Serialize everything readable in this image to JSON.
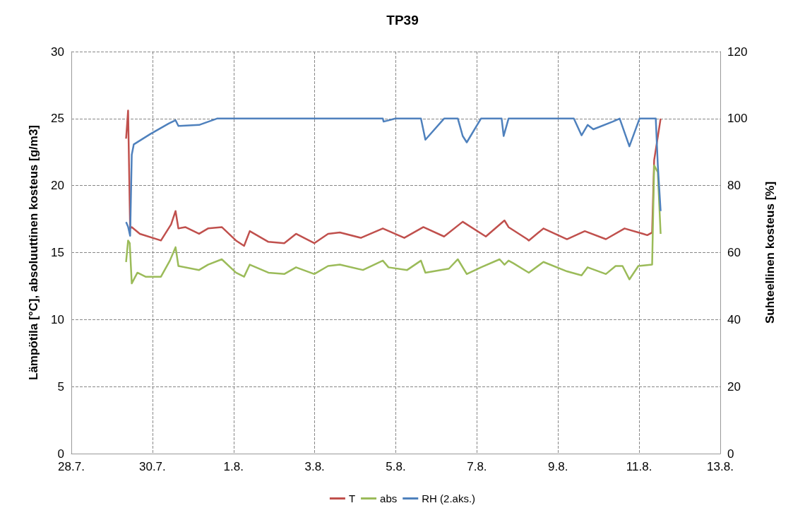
{
  "chart_data": {
    "type": "line",
    "title": "TP39",
    "ylabel": "Lämpötila [°C], absoluuttinen kosteus [g/m3]",
    "y2label": "Suhteellinen kosteus [%]",
    "xlim": [
      "--07-28",
      "--08-13"
    ],
    "xticks": [
      {
        "value": "--07-28",
        "label": "28.7."
      },
      {
        "value": "--07-30",
        "label": "30.7."
      },
      {
        "value": "--08-01",
        "label": "1.8."
      },
      {
        "value": "--08-03",
        "label": "3.8."
      },
      {
        "value": "--08-05",
        "label": "5.8."
      },
      {
        "value": "--08-07",
        "label": "7.8."
      },
      {
        "value": "--08-09",
        "label": "9.8."
      },
      {
        "value": "--08-11",
        "label": "11.8."
      },
      {
        "value": "--08-13",
        "label": "13.8."
      }
    ],
    "ylim": [
      0,
      30
    ],
    "yticks": [
      0,
      5,
      10,
      15,
      20,
      25,
      30
    ],
    "y2lim": [
      0,
      120
    ],
    "y2ticks": [
      0,
      20,
      40,
      60,
      80,
      100,
      120
    ],
    "grid": true,
    "legend": "bottom",
    "marker": "none",
    "line_style": "solid",
    "series": [
      {
        "name": "T",
        "color": "#c0504d",
        "x": [
          "--07-29T08:24",
          "--07-29T09:36",
          "--07-29T10:48",
          "--07-29T11:46",
          "--07-29T16:34",
          "--07-30T05:02",
          "--07-30T11:02",
          "--07-30T13:41",
          "--07-30T15:22",
          "--07-30T19:26",
          "--07-31T03:36",
          "--07-31T08:53",
          "--07-31T17:02",
          "--08-01T01:26",
          "--08-01T06:14",
          "--08-01T09:36",
          "--08-01T20:38",
          "--08-02T06:00",
          "--08-02T12:58",
          "--08-02T23:46",
          "--08-03T07:55",
          "--08-03T14:53",
          "--08-04T03:22",
          "--08-04T16:19",
          "--08-05T05:02",
          "--08-05T16:19",
          "--08-06T04:34",
          "--08-06T15:36",
          "--08-07T05:17",
          "--08-07T16:19",
          "--08-07T18:43",
          "--08-08T05:46",
          "--08-08T06:43",
          "--08-08T15:22",
          "--08-09T05:17",
          "--08-09T15:50",
          "--08-10T04:19",
          "--08-10T15:22",
          "--08-11T02:24",
          "--08-11T04:48",
          "--08-11T07:41",
          "--08-11T08:53",
          "--08-11T12:43"
        ],
        "values": [
          23.5,
          25.6,
          16.8,
          16.9,
          16.4,
          15.9,
          17.1,
          18.1,
          16.8,
          16.9,
          16.4,
          16.8,
          16.9,
          15.9,
          15.5,
          16.6,
          15.8,
          15.7,
          16.4,
          15.7,
          16.4,
          16.5,
          16.1,
          16.8,
          16.1,
          16.9,
          16.2,
          17.3,
          16.2,
          17.4,
          16.9,
          16.0,
          15.9,
          16.8,
          16.0,
          16.6,
          16.0,
          16.8,
          16.4,
          16.3,
          16.5,
          21.9,
          25.0
        ]
      },
      {
        "name": "abs",
        "color": "#9bbb59",
        "x": [
          "--07-29T08:24",
          "--07-29T09:36",
          "--07-29T10:34",
          "--07-29T11:46",
          "--07-29T15:07",
          "--07-29T19:55",
          "--07-30T05:02",
          "--07-30T10:19",
          "--07-30T13:41",
          "--07-30T15:22",
          "--07-31T03:36",
          "--07-31T08:53",
          "--07-31T17:02",
          "--08-01T01:26",
          "--08-01T06:14",
          "--08-01T09:36",
          "--08-01T20:38",
          "--08-02T06:00",
          "--08-02T12:58",
          "--08-02T23:46",
          "--08-03T07:55",
          "--08-03T14:53",
          "--08-04T04:34",
          "--08-04T16:19",
          "--08-04T19:41",
          "--08-05T06:43",
          "--08-05T14:53",
          "--08-05T17:31",
          "--08-06T07:26",
          "--08-06T12:43",
          "--08-06T18:00",
          "--08-07T02:24",
          "--08-07T13:26",
          "--08-07T16:19",
          "--08-07T18:43",
          "--08-07T21:36",
          "--08-08T06:43",
          "--08-08T15:22",
          "--08-09T05:17",
          "--08-09T13:55",
          "--08-09T17:31",
          "--08-10T04:19",
          "--08-10T10:05",
          "--08-10T14:10",
          "--08-10T18:14",
          "--08-10T23:31",
          "--08-11T07:41",
          "--08-11T08:53",
          "--08-11T11:02",
          "--08-11T12:43"
        ],
        "values": [
          14.3,
          15.9,
          15.7,
          12.7,
          13.5,
          13.2,
          13.2,
          14.4,
          15.4,
          14.0,
          13.7,
          14.1,
          14.5,
          13.5,
          13.2,
          14.1,
          13.5,
          13.4,
          13.9,
          13.4,
          14.0,
          14.1,
          13.7,
          14.4,
          13.9,
          13.7,
          14.4,
          13.5,
          13.8,
          14.5,
          13.4,
          13.9,
          14.5,
          14.1,
          14.4,
          14.2,
          13.5,
          14.3,
          13.6,
          13.3,
          13.9,
          13.4,
          14.0,
          14.0,
          13.0,
          14.0,
          14.1,
          21.5,
          21.0,
          16.4
        ]
      },
      {
        "name": "RH (2.aks.)",
        "color": "#4f81bd",
        "axis": "y2",
        "x": [
          "--07-29T08:24",
          "--07-29T09:36",
          "--07-29T10:48",
          "--07-29T11:46",
          "--07-29T12:58",
          "--07-29T22:48",
          "--07-30T09:36",
          "--07-30T13:41",
          "--07-30T15:22",
          "--07-31T03:36",
          "--07-31T14:10",
          "--08-04T16:19",
          "--08-04T16:48",
          "--08-04T23:46",
          "--08-05T14:53",
          "--08-05T17:31",
          "--08-06T04:34",
          "--08-06T12:43",
          "--08-06T15:36",
          "--08-06T18:00",
          "--08-07T02:24",
          "--08-07T14:38",
          "--08-07T15:50",
          "--08-07T18:43",
          "--08-09T09:22",
          "--08-09T13:55",
          "--08-09T17:31",
          "--08-09T20:53",
          "--08-10T08:24",
          "--08-10T12:29",
          "--08-10T18:14",
          "--08-11T00:14",
          "--08-11T09:50",
          "--08-11T11:02",
          "--08-11T12:43"
        ],
        "values": [
          69.1,
          67.7,
          65,
          89.2,
          92.3,
          95.4,
          98.5,
          99.5,
          97.8,
          98.1,
          100,
          100,
          99.1,
          100,
          100,
          93.7,
          100,
          100,
          94.8,
          92.9,
          100,
          100,
          94.8,
          100,
          100,
          95.0,
          98.1,
          96.8,
          99.1,
          100,
          91.7,
          100,
          100,
          86.2,
          72.4
        ]
      }
    ]
  }
}
